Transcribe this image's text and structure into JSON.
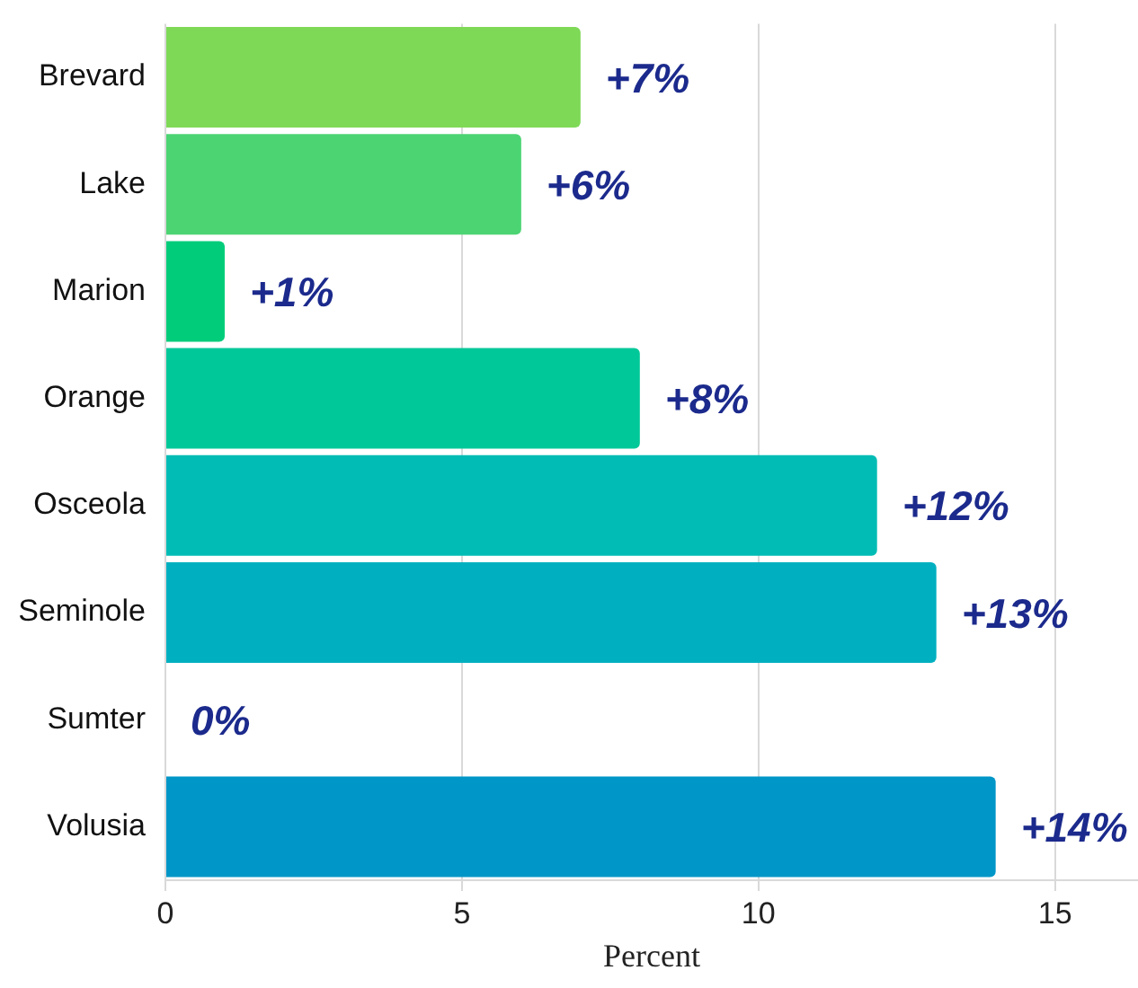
{
  "chart_data": {
    "type": "bar",
    "orientation": "horizontal",
    "xlabel": "Percent",
    "categories": [
      "Brevard",
      "Lake",
      "Marion",
      "Orange",
      "Osceola",
      "Seminole",
      "Sumter",
      "Volusia"
    ],
    "values": [
      7,
      6,
      1,
      8,
      12,
      13,
      0,
      14
    ],
    "colors": [
      "#7ed957",
      "#4cd473",
      "#00cc7a",
      "#00c898",
      "#00bcb4",
      "#00b0c0",
      "#00a4c4",
      "#0096c7"
    ],
    "value_labels": [
      "+7%",
      "+6%",
      "+1%",
      "+8%",
      "+12%",
      "+13%",
      "0%",
      "+14%"
    ],
    "xlim": [
      0,
      16.4
    ],
    "xticks": [
      0,
      5,
      10,
      15
    ],
    "grid": "x",
    "legend": false
  }
}
